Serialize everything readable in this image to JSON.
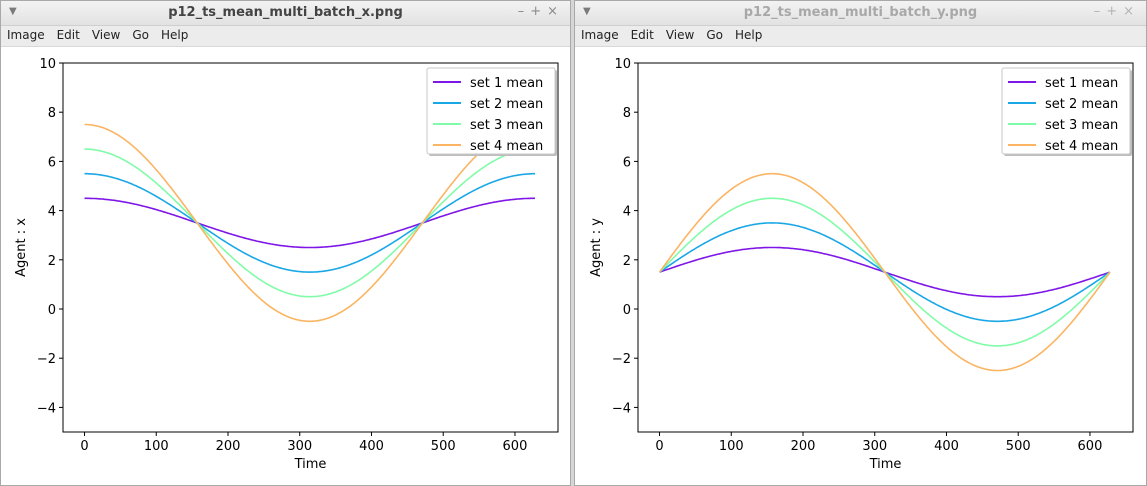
{
  "menu_items": [
    "Image",
    "Edit",
    "View",
    "Go",
    "Help"
  ],
  "left_window": {
    "title": "p12_ts_mean_multi_batch_x.png",
    "chart_data": {
      "type": "line",
      "xlabel": "Time",
      "ylabel": "Agent : x",
      "xlim": [
        -30,
        660
      ],
      "ylim": [
        -5,
        10
      ],
      "xticks": [
        0,
        100,
        200,
        300,
        400,
        500,
        600
      ],
      "yticks": [
        -4,
        -2,
        0,
        2,
        4,
        6,
        8,
        10
      ],
      "legend_position": "top-right",
      "x_range": [
        0,
        628
      ],
      "series": [
        {
          "name": "set 1 mean",
          "color": "#7f16e8",
          "offset": 3.5,
          "amplitude": 1,
          "function": "cos"
        },
        {
          "name": "set 2 mean",
          "color": "#1aa7e6",
          "offset": 3.5,
          "amplitude": 2,
          "function": "cos"
        },
        {
          "name": "set 3 mean",
          "color": "#80fca8",
          "offset": 3.5,
          "amplitude": 3,
          "function": "cos"
        },
        {
          "name": "set 4 mean",
          "color": "#fbb462",
          "offset": 3.5,
          "amplitude": 4,
          "function": "cos"
        }
      ]
    }
  },
  "right_window": {
    "title": "p12_ts_mean_multi_batch_y.png",
    "chart_data": {
      "type": "line",
      "xlabel": "Time",
      "ylabel": "Agent : y",
      "xlim": [
        -30,
        660
      ],
      "ylim": [
        -5,
        10
      ],
      "xticks": [
        0,
        100,
        200,
        300,
        400,
        500,
        600
      ],
      "yticks": [
        -4,
        -2,
        0,
        2,
        4,
        6,
        8,
        10
      ],
      "legend_position": "top-right",
      "x_range": [
        0,
        628
      ],
      "series": [
        {
          "name": "set 1 mean",
          "color": "#7f16e8",
          "offset": 1.5,
          "amplitude": 1,
          "function": "sin"
        },
        {
          "name": "set 2 mean",
          "color": "#1aa7e6",
          "offset": 1.5,
          "amplitude": 2,
          "function": "sin"
        },
        {
          "name": "set 3 mean",
          "color": "#80fca8",
          "offset": 1.5,
          "amplitude": 3,
          "function": "sin"
        },
        {
          "name": "set 4 mean",
          "color": "#fbb462",
          "offset": 1.5,
          "amplitude": 4,
          "function": "sin"
        }
      ]
    }
  }
}
